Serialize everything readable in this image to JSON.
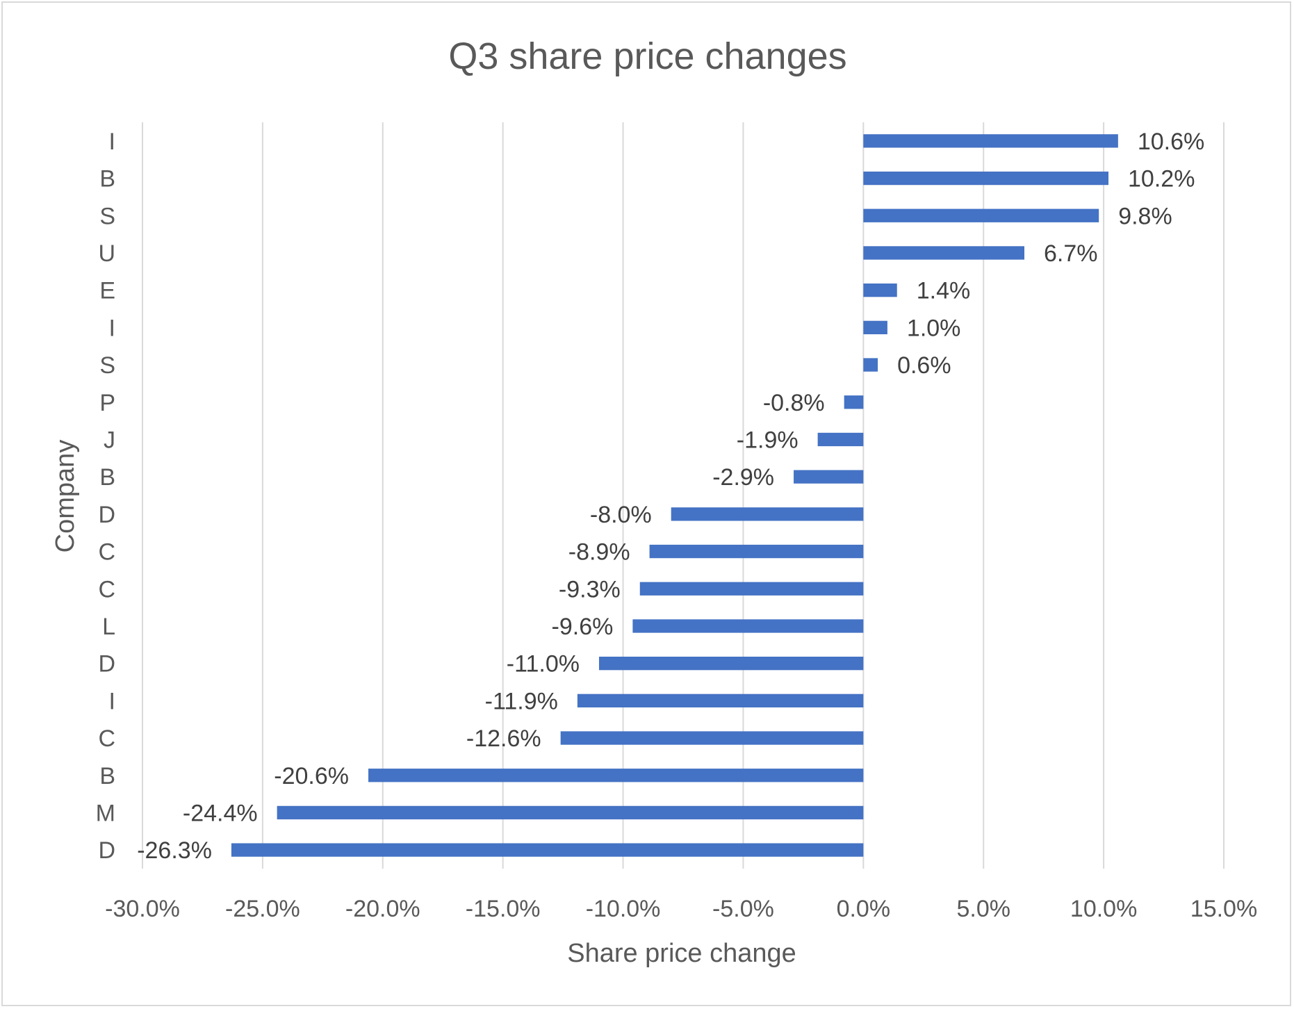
{
  "chart_data": {
    "type": "bar",
    "orientation": "horizontal",
    "title": "Q3 share price changes",
    "xlabel": "Share price change",
    "ylabel": "Company",
    "xlim": [
      -30,
      15
    ],
    "x_ticks": [
      -30,
      -25,
      -20,
      -15,
      -10,
      -5,
      0,
      5,
      10,
      15
    ],
    "x_tick_labels": [
      "-30.0%",
      "-25.0%",
      "-20.0%",
      "-15.0%",
      "-10.0%",
      "-5.0%",
      "0.0%",
      "5.0%",
      "10.0%",
      "15.0%"
    ],
    "grid": true,
    "legend": "none",
    "bar_color": "#4472c4",
    "categories": [
      "I",
      "B",
      "S",
      "U",
      "E",
      "I",
      "S",
      "P",
      "J",
      "B",
      "D",
      "C",
      "C",
      "L",
      "D",
      "I",
      "C",
      "B",
      "M",
      "D"
    ],
    "values": [
      10.6,
      10.2,
      9.8,
      6.7,
      1.4,
      1.0,
      0.6,
      -0.8,
      -1.9,
      -2.9,
      -8.0,
      -8.9,
      -9.3,
      -9.6,
      -11.0,
      -11.9,
      -12.6,
      -20.6,
      -24.4,
      -26.3
    ],
    "data_labels": [
      "10.6%",
      "10.2%",
      "9.8%",
      "6.7%",
      "1.4%",
      "1.0%",
      "0.6%",
      "-0.8%",
      "-1.9%",
      "-2.9%",
      "-8.0%",
      "-8.9%",
      "-9.3%",
      "-9.6%",
      "-11.0%",
      "-11.9%",
      "-12.6%",
      "-20.6%",
      "-24.4%",
      "-26.3%"
    ]
  }
}
